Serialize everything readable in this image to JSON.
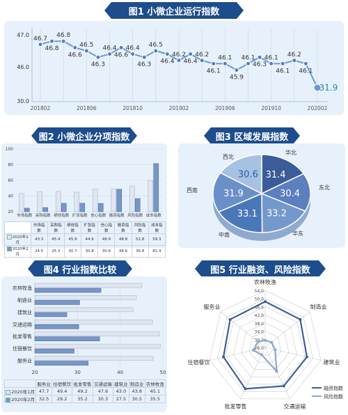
{
  "chart1": {
    "title": "图1 小微企业运行指数",
    "x_labels": [
      "201802",
      "201806",
      "201810",
      "201902",
      "201906",
      "201910",
      "202002"
    ],
    "y_ticks": [
      "47.0",
      "46.0",
      "30.0"
    ],
    "chart_data": {
      "type": "line",
      "title": "图1 小微企业运行指数",
      "values": [
        46.7,
        46.8,
        46.8,
        46.6,
        46.5,
        46.3,
        46.4,
        46.6,
        46.4,
        46.3,
        46.5,
        46.4,
        46.2,
        46.4,
        46.2,
        46.1,
        46.1,
        45.9,
        46.1,
        46.3,
        46.1,
        46.1,
        46.2,
        46.1,
        31.9
      ],
      "value_labels": [
        "46.7",
        "46.8",
        "46.8",
        "46.6",
        "46.5",
        "46.3",
        "46.4",
        "46.6",
        "46.4",
        "46.3",
        "46.5",
        "46.4",
        "46.2",
        "46.4",
        "46.2",
        "46.1",
        "46.1",
        "45.9",
        "46.1",
        "46.3",
        "46.1",
        "46.1",
        "46.2",
        "46.1",
        "31.9"
      ],
      "x_tick_labels": [
        "201802",
        "201806",
        "201810",
        "201902",
        "201906",
        "201910",
        "202002"
      ],
      "y_tick_labels": [
        "47.0",
        "46.0",
        "30.0"
      ],
      "y_axis": "broken scale"
    }
  },
  "chart2": {
    "title": "图2 小微企业分项指数",
    "y_ticks": [
      "100",
      "80",
      "60",
      "40",
      "20"
    ],
    "chart_data": {
      "type": "bar",
      "title": "图2 小微企业分项指数",
      "categories": [
        "市场指数",
        "采购指数",
        "绩效指数",
        "扩张指数",
        "信心指数",
        "融资指数",
        "风险指数",
        "成本指数"
      ],
      "ylim": [
        20,
        100
      ],
      "series": [
        {
          "name": "2020年1月",
          "values": [
            43.3,
            45.4,
            45.9,
            44.9,
            48.9,
            48.8,
            52.8,
            59.3
          ]
        },
        {
          "name": "2020年2月",
          "values": [
            24.5,
            25.3,
            30.7,
            30.8,
            30.6,
            48.6,
            36.8,
            81.4
          ]
        }
      ]
    },
    "table_rows": [
      {
        "label": "2020年1月",
        "values": [
          "43.3",
          "45.4",
          "45.9",
          "44.9",
          "48.9",
          "48.8",
          "52.8",
          "59.3"
        ]
      },
      {
        "label": "2020年2月",
        "values": [
          "24.5",
          "25.3",
          "30.7",
          "30.8",
          "30.6",
          "48.6",
          "36.8",
          "81.4"
        ]
      }
    ]
  },
  "chart3": {
    "title": "图3 区域发展指数",
    "chart_data": {
      "type": "pie",
      "title": "图3 区域发展指数",
      "labels": [
        "华北",
        "东北",
        "华东",
        "中南",
        "西南",
        "西北"
      ],
      "values": [
        31.4,
        30.4,
        33.2,
        33.1,
        31.9,
        30.6
      ],
      "value_labels": [
        "31.4",
        "30.4",
        "33.2",
        "33.1",
        "31.9",
        "30.6"
      ]
    }
  },
  "chart4": {
    "title": "图4 行业指数比较",
    "x_ticks": [
      "20",
      "30",
      "40",
      "50"
    ],
    "header": [
      "服务业",
      "住宿餐饮",
      "批发零售",
      "交通运输",
      "建筑业",
      "制造业",
      "农林牧渔"
    ],
    "chart_data": {
      "type": "bar",
      "title": "图4 行业指数比较",
      "orientation": "horizontal",
      "categories": [
        "农林牧渔",
        "制造业",
        "建筑业",
        "交通运输",
        "批发零售",
        "住宿餐饮",
        "服务业"
      ],
      "xlim": [
        20,
        50
      ],
      "series": [
        {
          "name": "2020年1月",
          "values": [
            45.1,
            43.8,
            43.0,
            47.6,
            49.2,
            49.4,
            47.7
          ]
        },
        {
          "name": "2020年2月",
          "values": [
            35.5,
            30.5,
            27.5,
            30.3,
            35.2,
            29.2,
            32.5
          ]
        }
      ]
    },
    "table_rows": [
      {
        "label": "2020年1月",
        "values": [
          "47.7",
          "49.4",
          "49.2",
          "47.6",
          "43.0",
          "43.8",
          "45.1"
        ]
      },
      {
        "label": "2020年2月",
        "values": [
          "32.5",
          "29.2",
          "35.2",
          "30.3",
          "27.5",
          "30.5",
          "35.5"
        ]
      }
    ]
  },
  "chart5": {
    "title": "图5 行业融资、风险指数",
    "r_ticks": [
      "54.0",
      "50.0",
      "46.0",
      "42.0",
      "38.0",
      "34.0",
      "30.0",
      "26.0"
    ],
    "chart_data": {
      "type": "radar",
      "title": "图5 行业融资、风险指数",
      "categories": [
        "农林牧渔",
        "制造业",
        "建筑业",
        "交通运输",
        "批发零售",
        "住宿餐饮",
        "服务业"
      ],
      "rlim": [
        26,
        54
      ],
      "series": [
        {
          "name": "融资指数",
          "values": [
            48.5,
            48,
            47,
            47,
            48.5,
            47,
            48
          ]
        },
        {
          "name": "风险指数",
          "values": [
            29.5,
            30,
            31,
            39,
            30,
            32,
            30.5
          ]
        }
      ]
    }
  },
  "colors": {
    "navy": "#1d4d8c",
    "line": "#6f98cf",
    "panel": "#e6f1fb",
    "pie": [
      "#3b5b99",
      "#5b7fbf",
      "#7399cc",
      "#4a77b8",
      "#6b8fc7",
      "#a6c1e2"
    ]
  }
}
